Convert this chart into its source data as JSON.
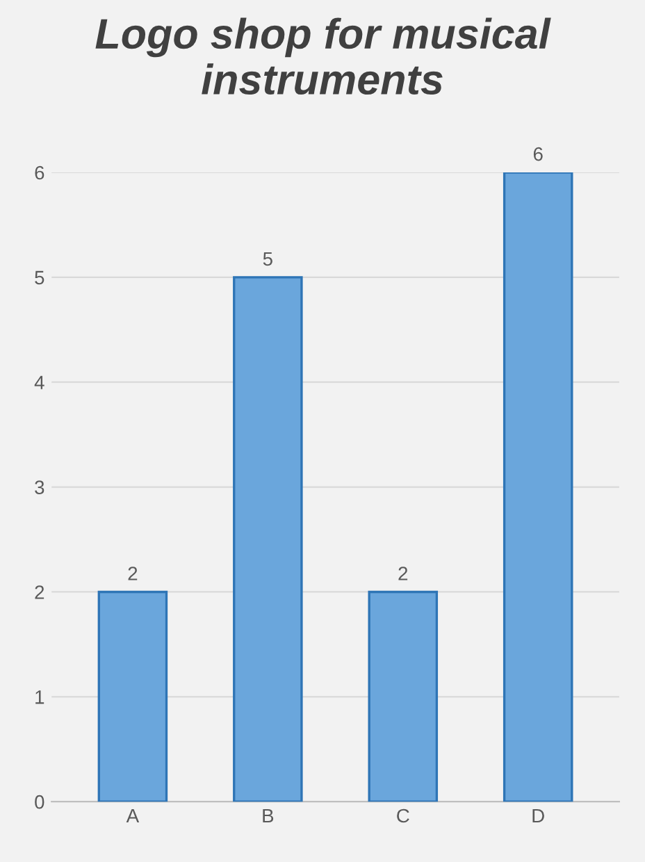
{
  "chart_data": {
    "type": "bar",
    "title": "Logo shop for musical instruments",
    "categories": [
      "A",
      "B",
      "C",
      "D"
    ],
    "values": [
      2,
      5,
      2,
      6
    ],
    "color": "#6aa6dc",
    "ylim": [
      0,
      6
    ],
    "yticks": [
      0,
      1,
      2,
      3,
      4,
      5,
      6
    ],
    "grid": "y",
    "data_labels": true
  }
}
